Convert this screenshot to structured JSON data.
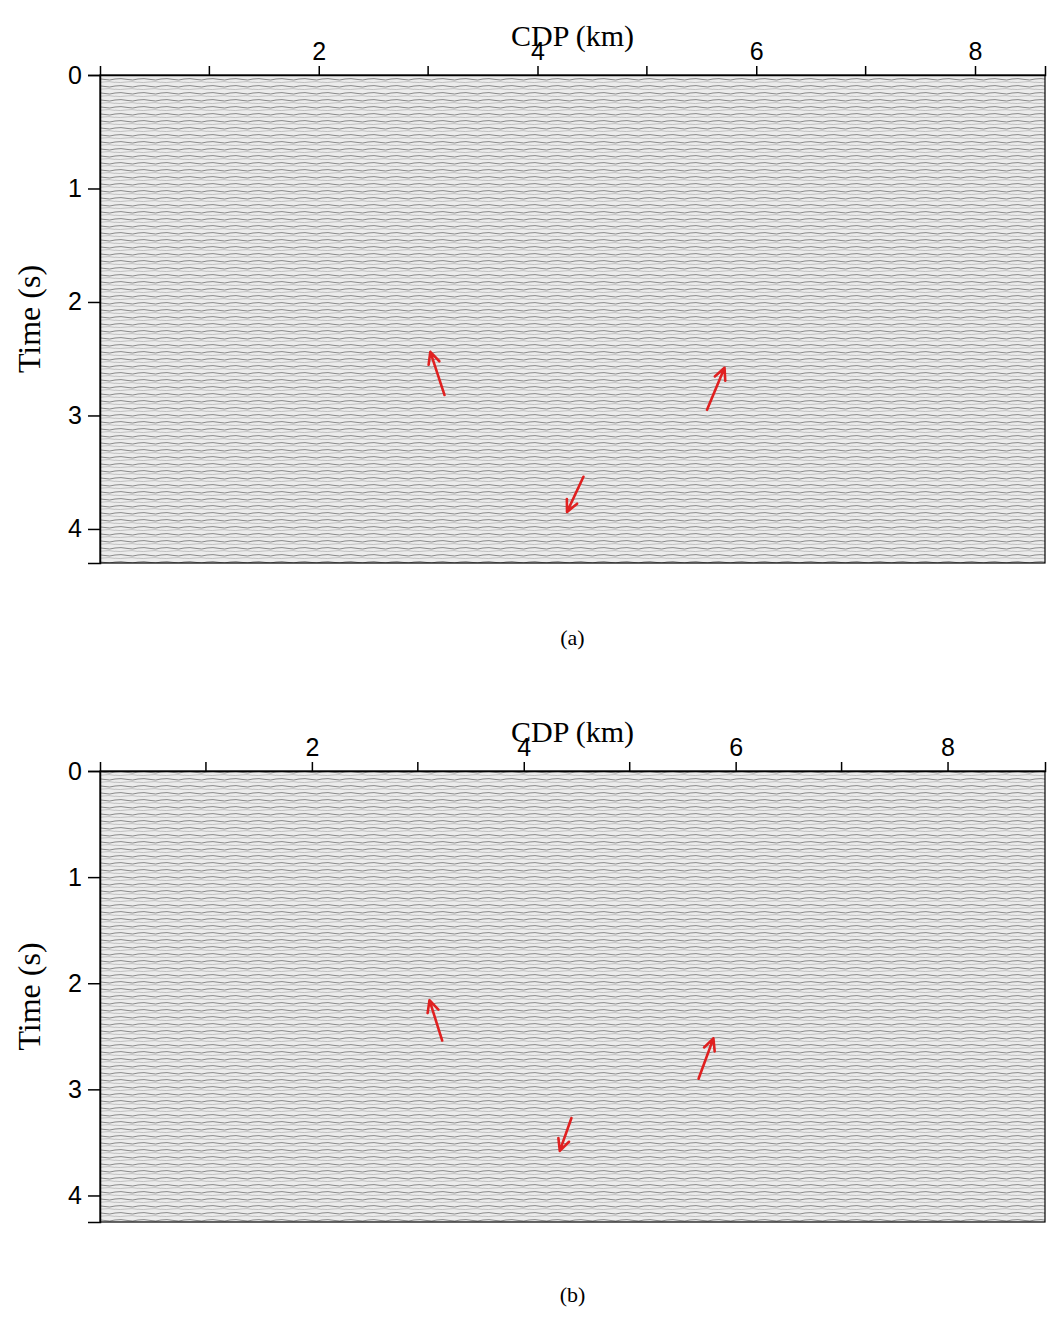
{
  "chart_data": [
    {
      "type": "seismic_section",
      "panel_label": "(a)",
      "xlabel": "CDP (km)",
      "ylabel": "Time (s)",
      "xlim": [
        0,
        8.64
      ],
      "xticks": [
        2,
        4,
        6,
        8
      ],
      "minor_xticks": [
        1,
        3,
        5,
        7
      ],
      "ylim": [
        0,
        4.3
      ],
      "yticks": [
        0,
        1,
        2,
        3,
        4
      ],
      "color": "#e02020",
      "arrows": [
        {
          "x": 3.02,
          "y": 2.44,
          "x_tail": 3.15,
          "y_tail": 2.82
        },
        {
          "x": 5.71,
          "y": 2.58,
          "x_tail": 5.55,
          "y_tail": 2.95
        },
        {
          "x": 4.27,
          "y": 3.85,
          "x_tail": 4.42,
          "y_tail": 3.54
        }
      ]
    },
    {
      "type": "seismic_section",
      "panel_label": "(b)",
      "xlabel": "CDP (km)",
      "ylabel": "Time (s)",
      "xlim": [
        0,
        8.92
      ],
      "xticks": [
        2,
        4,
        6,
        8
      ],
      "minor_xticks": [
        1,
        3,
        5,
        7
      ],
      "ylim": [
        0,
        4.25
      ],
      "yticks": [
        0,
        1,
        2,
        3,
        4
      ],
      "color": "#e02020",
      "arrows": [
        {
          "x": 3.11,
          "y": 2.16,
          "x_tail": 3.23,
          "y_tail": 2.54
        },
        {
          "x": 5.79,
          "y": 2.52,
          "x_tail": 5.65,
          "y_tail": 2.9
        },
        {
          "x": 4.34,
          "y": 3.58,
          "x_tail": 4.45,
          "y_tail": 3.27
        }
      ]
    }
  ]
}
